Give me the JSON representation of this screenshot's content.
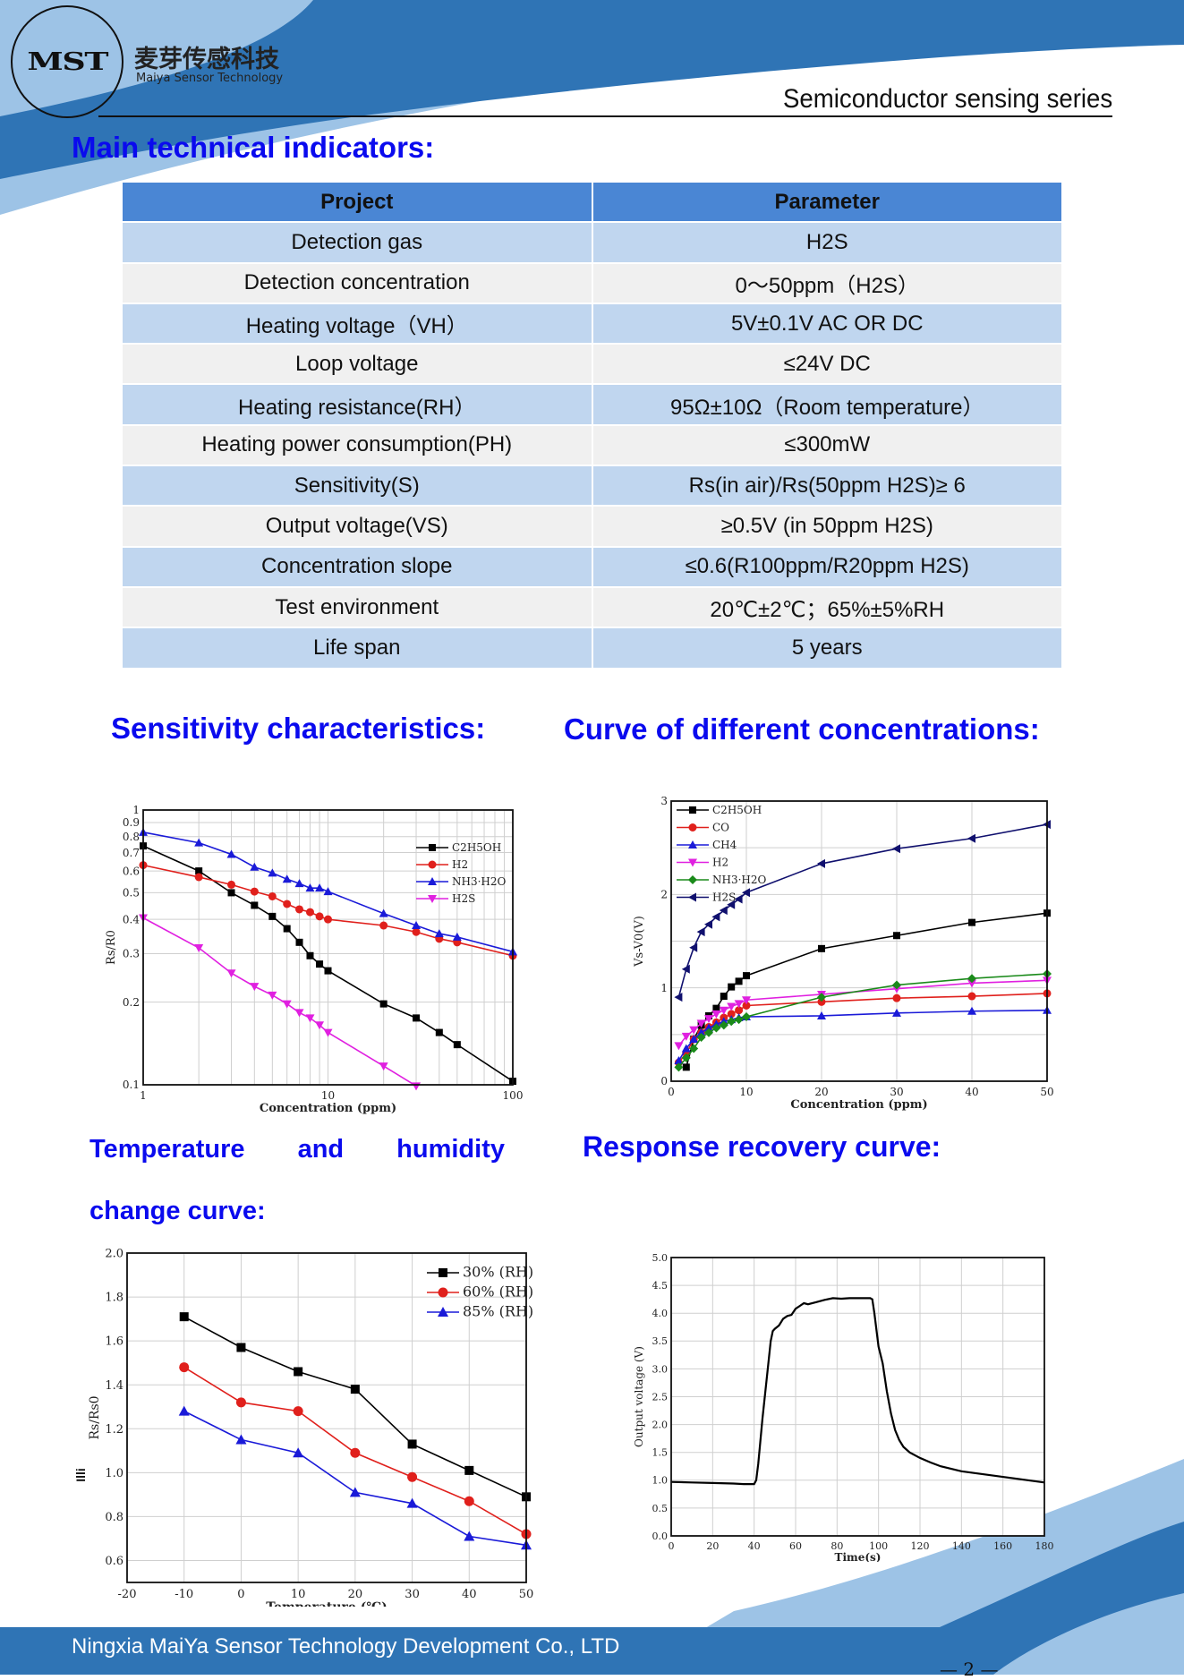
{
  "header": {
    "logo_text": "MST",
    "brand_cn": "麦芽传感科技",
    "brand_en": "Maiya Sensor Technology",
    "series": "Semiconductor sensing series"
  },
  "colors": {
    "heading_blue": "#0a0aee",
    "table_header": "#4a86d4",
    "table_row_blue": "#c0d6ef",
    "table_row_grey": "#f0f0f0",
    "band_dark": "#2f74b5",
    "band_light": "#9dc3e6"
  },
  "main_heading": "Main technical indicators:",
  "spec_table": {
    "headers": [
      "Project",
      "Parameter"
    ],
    "rows": [
      [
        "Detection gas",
        "H2S"
      ],
      [
        "Detection concentration",
        "0～50ppm（H2S）"
      ],
      [
        "Heating voltage（VH）",
        "5V±0.1V AC OR DC"
      ],
      [
        "Loop voltage",
        "≤24V DC"
      ],
      [
        "Heating resistance(RH）",
        "95Ω±10Ω（Room temperature）"
      ],
      [
        "Heating power consumption(PH)",
        "≤300mW"
      ],
      [
        "Sensitivity(S)",
        "Rs(in air)/Rs(50ppm H2S)≥ 6"
      ],
      [
        "Output voltage(VS)",
        "≥0.5V (in 50ppm H2S)"
      ],
      [
        "Concentration slope",
        "≤0.6(R100ppm/R20ppm H2S)"
      ],
      [
        "Test environment",
        "20℃±2℃；65%±5%RH"
      ],
      [
        "Life span",
        "5 years"
      ]
    ]
  },
  "sections": {
    "sensitivity": "Sensitivity characteristics:",
    "concentration": "Curve of different concentrations:",
    "temp_line1": [
      "Temperature",
      "and",
      "humidity"
    ],
    "temp_line2": "change curve:",
    "response": "Response recovery curve:"
  },
  "stray_mark": "Illi",
  "footer": {
    "company": "Ningxia MaiYa Sensor Technology Development Co., LTD",
    "page": "— 2 —"
  },
  "chart_data": [
    {
      "id": "sensitivity",
      "type": "line",
      "xscale": "log",
      "yscale": "log",
      "xlabel": "Concentration (ppm)",
      "ylabel": "Rs/R0",
      "xlim": [
        1,
        100
      ],
      "ylim": [
        0.1,
        1
      ],
      "xticks": [
        1,
        10,
        100
      ],
      "yticks": [
        0.1,
        0.2,
        0.3,
        0.4,
        0.5,
        0.6,
        0.7,
        0.8,
        0.9,
        1
      ],
      "grid": true,
      "legend": "top-right",
      "series": [
        {
          "name": "C2H5OH",
          "color": "#000000",
          "marker": "square",
          "x": [
            1,
            2,
            3,
            4,
            5,
            6,
            7,
            8,
            9,
            10,
            20,
            30,
            40,
            50,
            100
          ],
          "y": [
            0.74,
            0.6,
            0.5,
            0.45,
            0.41,
            0.37,
            0.33,
            0.295,
            0.275,
            0.26,
            0.197,
            0.175,
            0.155,
            0.14,
            0.103
          ]
        },
        {
          "name": "H2",
          "color": "#e0201c",
          "marker": "circle",
          "x": [
            1,
            2,
            3,
            4,
            5,
            6,
            7,
            8,
            9,
            10,
            20,
            30,
            40,
            50,
            100
          ],
          "y": [
            0.63,
            0.57,
            0.535,
            0.505,
            0.485,
            0.455,
            0.435,
            0.425,
            0.41,
            0.4,
            0.38,
            0.36,
            0.34,
            0.33,
            0.295
          ]
        },
        {
          "name": "NH3·H2O",
          "color": "#1a1ad8",
          "marker": "triangle-up",
          "x": [
            1,
            2,
            3,
            4,
            5,
            6,
            7,
            8,
            9,
            10,
            20,
            30,
            40,
            50,
            100
          ],
          "y": [
            0.83,
            0.76,
            0.69,
            0.62,
            0.59,
            0.56,
            0.54,
            0.52,
            0.52,
            0.505,
            0.42,
            0.38,
            0.355,
            0.345,
            0.305
          ]
        },
        {
          "name": "H2S",
          "color": "#e020e0",
          "marker": "triangle-down",
          "x": [
            1,
            2,
            3,
            4,
            5,
            6,
            7,
            8,
            9,
            10,
            20,
            30
          ],
          "y": [
            0.405,
            0.315,
            0.255,
            0.228,
            0.212,
            0.197,
            0.183,
            0.175,
            0.165,
            0.155,
            0.117,
            0.099
          ]
        }
      ]
    },
    {
      "id": "concentration",
      "type": "line",
      "xlabel": "Concentration (ppm)",
      "ylabel": "Vs-V0(V)",
      "xlim": [
        0,
        50
      ],
      "ylim": [
        0,
        3
      ],
      "xticks": [
        0,
        10,
        20,
        30,
        40,
        50
      ],
      "yticks": [
        0,
        1,
        2,
        3
      ],
      "grid": true,
      "legend": "top-left",
      "series": [
        {
          "name": "C2H5OH",
          "color": "#000000",
          "marker": "square",
          "x": [
            2,
            3,
            4,
            5,
            6,
            7,
            8,
            9,
            10,
            20,
            30,
            40,
            50
          ],
          "y": [
            0.15,
            0.45,
            0.6,
            0.7,
            0.78,
            0.91,
            1.01,
            1.07,
            1.13,
            1.42,
            1.56,
            1.7,
            1.8
          ]
        },
        {
          "name": "CO",
          "color": "#e0201c",
          "marker": "circle",
          "x": [
            1,
            2,
            3,
            4,
            5,
            6,
            7,
            8,
            9,
            10,
            20,
            30,
            40,
            50
          ],
          "y": [
            0.2,
            0.3,
            0.45,
            0.52,
            0.58,
            0.63,
            0.68,
            0.72,
            0.76,
            0.81,
            0.85,
            0.89,
            0.91,
            0.94
          ]
        },
        {
          "name": "CH4",
          "color": "#1a1ad8",
          "marker": "triangle-up",
          "x": [
            1,
            2,
            3,
            4,
            5,
            6,
            7,
            8,
            9,
            10,
            20,
            30,
            40,
            50
          ],
          "y": [
            0.22,
            0.35,
            0.45,
            0.52,
            0.57,
            0.61,
            0.64,
            0.66,
            0.68,
            0.69,
            0.7,
            0.73,
            0.75,
            0.76
          ]
        },
        {
          "name": "H2",
          "color": "#e020e0",
          "marker": "triangle-down",
          "x": [
            1,
            2,
            3,
            4,
            5,
            6,
            7,
            8,
            9,
            10,
            20,
            30,
            40,
            50
          ],
          "y": [
            0.38,
            0.48,
            0.55,
            0.62,
            0.67,
            0.72,
            0.76,
            0.8,
            0.83,
            0.87,
            0.93,
            0.99,
            1.05,
            1.08
          ]
        },
        {
          "name": "NH3·H2O",
          "color": "#1a8a1a",
          "marker": "diamond",
          "x": [
            1,
            2,
            3,
            4,
            5,
            6,
            7,
            8,
            9,
            10,
            20,
            30,
            40,
            50
          ],
          "y": [
            0.15,
            0.25,
            0.35,
            0.47,
            0.52,
            0.57,
            0.6,
            0.64,
            0.66,
            0.69,
            0.9,
            1.03,
            1.1,
            1.15
          ]
        },
        {
          "name": "H2S",
          "color": "#10106e",
          "marker": "triangle-left",
          "x": [
            1,
            2,
            3,
            4,
            5,
            6,
            7,
            8,
            9,
            10,
            20,
            30,
            40,
            50
          ],
          "y": [
            0.9,
            1.2,
            1.43,
            1.6,
            1.68,
            1.76,
            1.83,
            1.89,
            1.95,
            2.02,
            2.33,
            2.49,
            2.6,
            2.75
          ]
        }
      ]
    },
    {
      "id": "temperature",
      "type": "line",
      "xlabel": "Temperature (℃)",
      "ylabel": "Rs/Rs0",
      "xlim": [
        -20,
        50
      ],
      "ylim": [
        0.5,
        2.0
      ],
      "xticks": [
        -20,
        -10,
        0,
        10,
        20,
        30,
        40,
        50
      ],
      "yticks": [
        0.6,
        0.8,
        1.0,
        1.2,
        1.4,
        1.6,
        1.8,
        2.0
      ],
      "grid": true,
      "legend": "top-right",
      "series": [
        {
          "name": "30% (RH)",
          "color": "#000000",
          "marker": "square",
          "x": [
            -10,
            0,
            10,
            20,
            30,
            40,
            50
          ],
          "y": [
            1.71,
            1.57,
            1.46,
            1.38,
            1.13,
            1.01,
            0.89
          ]
        },
        {
          "name": "60% (RH)",
          "color": "#e0201c",
          "marker": "circle",
          "x": [
            -10,
            0,
            10,
            20,
            30,
            40,
            50
          ],
          "y": [
            1.48,
            1.32,
            1.28,
            1.09,
            0.98,
            0.87,
            0.72
          ]
        },
        {
          "name": "85% (RH)",
          "color": "#1a1ad8",
          "marker": "triangle-up",
          "x": [
            -10,
            0,
            10,
            20,
            30,
            40,
            50
          ],
          "y": [
            1.28,
            1.15,
            1.09,
            0.91,
            0.86,
            0.71,
            0.67
          ]
        }
      ]
    },
    {
      "id": "response",
      "type": "line",
      "xlabel": "Time(s)",
      "ylabel": "Output voltage (V)",
      "xlim": [
        0,
        180
      ],
      "ylim": [
        0,
        5.0
      ],
      "xticks": [
        0,
        20,
        40,
        60,
        80,
        100,
        120,
        140,
        160,
        180
      ],
      "yticks": [
        0.0,
        0.5,
        1.0,
        1.5,
        2.0,
        2.5,
        3.0,
        3.5,
        4.0,
        4.5,
        5.0
      ],
      "grid": true,
      "legend": "none",
      "series": [
        {
          "name": "Output voltage",
          "color": "#000000",
          "marker": "none",
          "x": [
            0,
            10,
            20,
            30,
            35,
            40,
            41,
            42,
            44,
            46,
            48,
            49,
            50,
            52,
            54,
            56,
            58,
            60,
            62,
            64,
            66,
            70,
            74,
            78,
            82,
            86,
            90,
            94,
            96,
            97,
            98,
            100,
            102,
            104,
            106,
            108,
            110,
            112,
            115,
            120,
            125,
            130,
            140,
            150,
            160,
            170,
            180
          ],
          "y": [
            0.97,
            0.96,
            0.95,
            0.94,
            0.93,
            0.93,
            1.0,
            1.3,
            2.1,
            2.8,
            3.5,
            3.68,
            3.72,
            3.78,
            3.9,
            3.95,
            3.97,
            4.08,
            4.13,
            4.18,
            4.16,
            4.2,
            4.24,
            4.27,
            4.26,
            4.27,
            4.27,
            4.27,
            4.27,
            4.25,
            4.0,
            3.4,
            3.1,
            2.6,
            2.2,
            1.9,
            1.72,
            1.6,
            1.5,
            1.4,
            1.32,
            1.25,
            1.16,
            1.11,
            1.06,
            1.01,
            0.96
          ]
        }
      ]
    }
  ]
}
